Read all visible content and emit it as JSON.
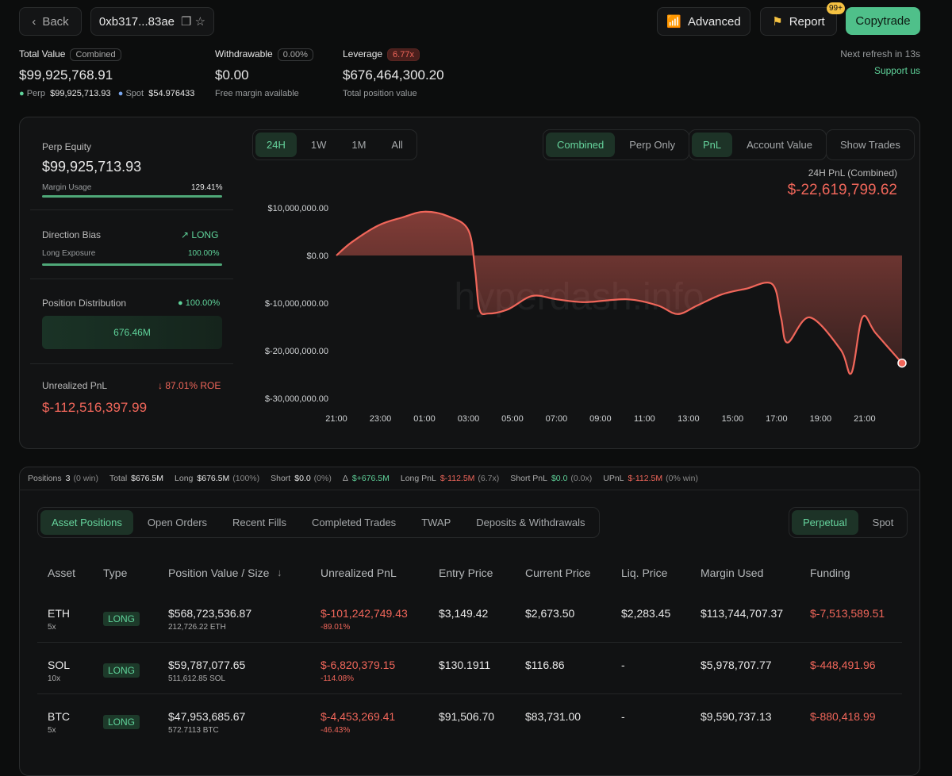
{
  "header": {
    "back": "Back",
    "address": "0xb317...83ae",
    "advanced": "Advanced",
    "report": "Report",
    "badge": "99+",
    "copytrade": "Copytrade"
  },
  "stats": {
    "total": {
      "label": "Total Value",
      "tag": "Combined",
      "value": "$99,925,768.91",
      "perp_label": "Perp",
      "perp": "$99,925,713.93",
      "spot_label": "Spot",
      "spot": "$54.976433"
    },
    "withdrawable": {
      "label": "Withdrawable",
      "tag": "0.00%",
      "value": "$0.00",
      "note": "Free margin available"
    },
    "leverage": {
      "label": "Leverage",
      "tag": "6.77x",
      "value": "$676,464,300.20",
      "note": "Total position value"
    },
    "refresh": "Next refresh in 13s",
    "support": "Support us"
  },
  "summary": {
    "perp_equity_label": "Perp Equity",
    "perp_equity": "$99,925,713.93",
    "margin_usage_label": "Margin Usage",
    "margin_usage": "129.41%",
    "bias_label": "Direction Bias",
    "bias": "LONG",
    "long_exposure_label": "Long Exposure",
    "long_exposure": "100.00%",
    "distribution_label": "Position Distribution",
    "distribution_pct": "100.00%",
    "distribution_value": "676.46M",
    "upnl_label": "Unrealized PnL",
    "roe": "87.01% ROE",
    "upnl": "$-112,516,397.99"
  },
  "controls": {
    "ranges": [
      "24H",
      "1W",
      "1M",
      "All"
    ],
    "modes": [
      "Combined",
      "Perp Only"
    ],
    "metrics": [
      "PnL",
      "Account Value"
    ],
    "show_trades": "Show Trades"
  },
  "chart": {
    "type": "line",
    "title": "24H PnL (Combined)",
    "headline": "$-22,619,799.62",
    "watermark": "hyperdash.info",
    "x": [
      0,
      0.7,
      1.9,
      3,
      4,
      5.1,
      6,
      6.3,
      6.5,
      6.9,
      7.8,
      8.9,
      10,
      11.3,
      13.2,
      14.6,
      15.5,
      16.4,
      17.5,
      18.6,
      19.8,
      20.2,
      20.5,
      21.5,
      22.9,
      23.4,
      23.9,
      24.5,
      25.7
    ],
    "series": [
      {
        "color": "#f0665a",
        "values": [
          0,
          2800000,
          6300000,
          8000000,
          9200000,
          8200000,
          5300000,
          -3000000,
          -11300000,
          -12200000,
          -11300000,
          -8500000,
          -9200000,
          -9800000,
          -9200000,
          -10500000,
          -12300000,
          -10500000,
          -8200000,
          -7000000,
          -6000000,
          -13000000,
          -18300000,
          -13000000,
          -19700000,
          -24700000,
          -13000000,
          -16300000,
          -22600000
        ]
      }
    ],
    "xlim": [
      0,
      25.7
    ],
    "xticks": [
      {
        "value": 0,
        "label": "21:00"
      },
      {
        "value": 2,
        "label": "23:00"
      },
      {
        "value": 4,
        "label": "01:00"
      },
      {
        "value": 6,
        "label": "03:00"
      },
      {
        "value": 8,
        "label": "05:00"
      },
      {
        "value": 10,
        "label": "07:00"
      },
      {
        "value": 12,
        "label": "09:00"
      },
      {
        "value": 14,
        "label": "11:00"
      },
      {
        "value": 16,
        "label": "13:00"
      },
      {
        "value": 18,
        "label": "15:00"
      },
      {
        "value": 20,
        "label": "17:00"
      },
      {
        "value": 22,
        "label": "19:00"
      },
      {
        "value": 24,
        "label": "21:00"
      }
    ],
    "ylim": [
      -30000000,
      12000000
    ],
    "yticks": [
      {
        "value": 10000000,
        "label": "$10,000,000.00"
      },
      {
        "value": 0,
        "label": "$0.00"
      },
      {
        "value": -10000000,
        "label": "$-10,000,000.00"
      },
      {
        "value": -20000000,
        "label": "$-20,000,000.00"
      },
      {
        "value": -30000000,
        "label": "$-30,000,000.00"
      }
    ]
  },
  "positions_bar": [
    {
      "label": "Positions",
      "value": "3",
      "extra": "(0 win)"
    },
    {
      "label": "Total",
      "value": "$676.5M"
    },
    {
      "label": "Long",
      "value": "$676.5M",
      "extra": "(100%)"
    },
    {
      "label": "Short",
      "value": "$0.0",
      "extra": "(0%)"
    },
    {
      "label": "Δ",
      "value": "$+676.5M"
    },
    {
      "label": "Long PnL",
      "value": "$-112.5M",
      "extra": "(6.7x)"
    },
    {
      "label": "Short PnL",
      "value": "$0.0",
      "extra": "(0.0x)"
    },
    {
      "label": "UPnL",
      "value": "$-112.5M",
      "extra": "(0% win)"
    }
  ],
  "tabs": [
    "Asset Positions",
    "Open Orders",
    "Recent Fills",
    "Completed Trades",
    "TWAP",
    "Deposits & Withdrawals"
  ],
  "market_tabs": [
    "Perpetual",
    "Spot"
  ],
  "table": {
    "headers": [
      "Asset",
      "Type",
      "Position Value / Size",
      "Unrealized PnL",
      "Entry Price",
      "Current Price",
      "Liq. Price",
      "Margin Used",
      "Funding"
    ],
    "rows": [
      {
        "asset": "ETH",
        "lev": "5x",
        "type": "LONG",
        "value": "$568,723,536.87",
        "size": "212,726.22 ETH",
        "pnl": "$-101,242,749.43",
        "pnl_pct": "-89.01%",
        "entry": "$3,149.42",
        "current": "$2,673.50",
        "liq": "$2,283.45",
        "margin": "$113,744,707.37",
        "funding": "$-7,513,589.51"
      },
      {
        "asset": "SOL",
        "lev": "10x",
        "type": "LONG",
        "value": "$59,787,077.65",
        "size": "511,612.85 SOL",
        "pnl": "$-6,820,379.15",
        "pnl_pct": "-114.08%",
        "entry": "$130.1911",
        "current": "$116.86",
        "liq": "-",
        "margin": "$5,978,707.77",
        "funding": "$-448,491.96"
      },
      {
        "asset": "BTC",
        "lev": "5x",
        "type": "LONG",
        "value": "$47,953,685.67",
        "size": "572.7113 BTC",
        "pnl": "$-4,453,269.41",
        "pnl_pct": "-46.43%",
        "entry": "$91,506.70",
        "current": "$83,731.00",
        "liq": "-",
        "margin": "$9,590,737.13",
        "funding": "$-880,418.99"
      }
    ]
  }
}
